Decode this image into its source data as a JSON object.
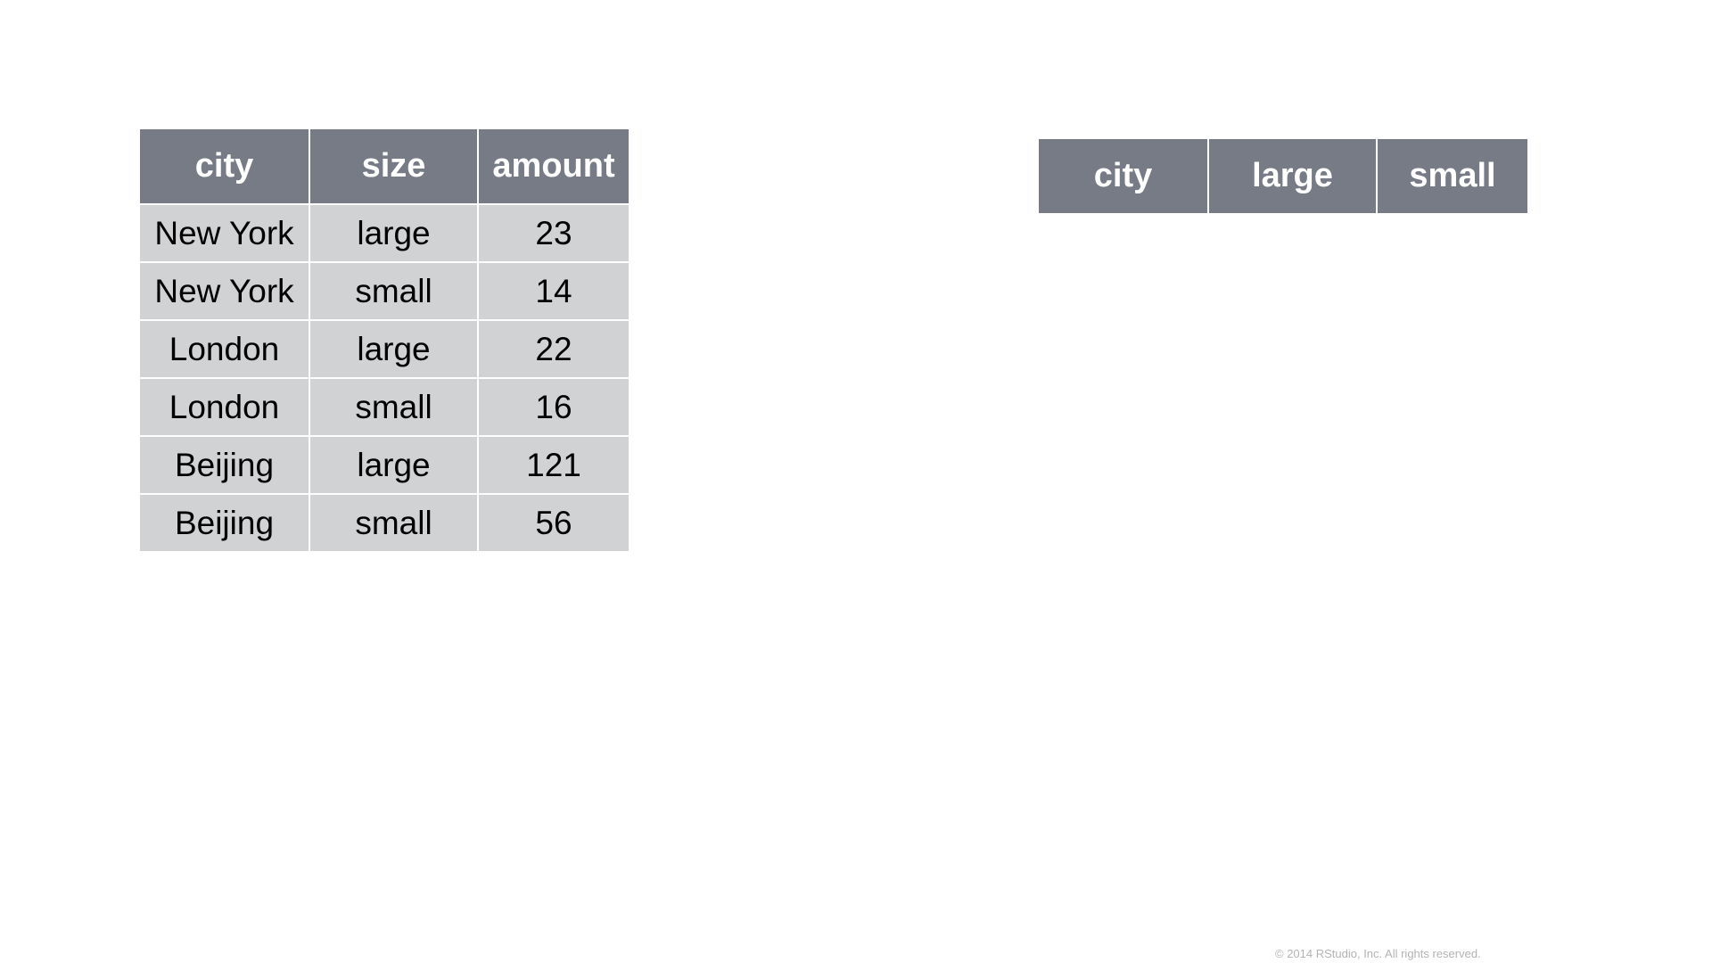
{
  "long_table": {
    "columns": [
      "city",
      "size",
      "amount"
    ],
    "rows": [
      [
        "New York",
        "large",
        "23"
      ],
      [
        "New York",
        "small",
        "14"
      ],
      [
        "London",
        "large",
        "22"
      ],
      [
        "London",
        "small",
        "16"
      ],
      [
        "Beijing",
        "large",
        "121"
      ],
      [
        "Beijing",
        "small",
        "56"
      ]
    ]
  },
  "wide_table": {
    "columns": [
      "city",
      "large",
      "small"
    ]
  },
  "footer": {
    "copyright": "© 2014 RStudio, Inc. All rights reserved."
  },
  "colors": {
    "header_bg": "#767b85",
    "cell_bg": "#d1d2d4",
    "header_text": "#ffffff",
    "cell_text": "#000000"
  }
}
